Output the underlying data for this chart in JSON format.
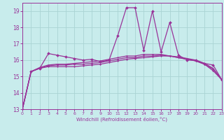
{
  "xlabel": "Windchill (Refroidissement éolien,°C)",
  "bg_color": "#c8ecec",
  "grid_color": "#aad4d4",
  "line_color": "#993399",
  "xlim": [
    0,
    23
  ],
  "ylim": [
    13,
    19.5
  ],
  "yticks": [
    13,
    14,
    15,
    16,
    17,
    18,
    19
  ],
  "xticks": [
    0,
    1,
    2,
    3,
    4,
    5,
    6,
    7,
    8,
    9,
    10,
    11,
    12,
    13,
    14,
    15,
    16,
    17,
    18,
    19,
    20,
    21,
    22,
    23
  ],
  "series": [
    [
      13.0,
      15.3,
      15.5,
      16.4,
      16.3,
      16.2,
      16.1,
      16.0,
      16.05,
      15.9,
      16.0,
      17.5,
      19.2,
      19.2,
      16.6,
      19.0,
      16.5,
      18.3,
      16.3,
      16.0,
      16.0,
      15.8,
      15.7,
      14.8
    ],
    [
      13.0,
      15.3,
      15.5,
      15.6,
      15.6,
      15.6,
      15.6,
      15.65,
      15.7,
      15.75,
      15.85,
      15.95,
      16.05,
      16.1,
      16.15,
      16.2,
      16.25,
      16.25,
      16.2,
      16.1,
      16.0,
      15.8,
      15.5,
      14.8
    ],
    [
      13.0,
      15.3,
      15.5,
      15.65,
      15.7,
      15.7,
      15.75,
      15.75,
      15.8,
      15.85,
      15.95,
      16.05,
      16.15,
      16.15,
      16.25,
      16.25,
      16.3,
      16.25,
      16.15,
      16.05,
      15.95,
      15.75,
      15.35,
      14.8
    ],
    [
      13.0,
      15.3,
      15.55,
      15.7,
      15.75,
      15.75,
      15.8,
      15.85,
      15.9,
      15.95,
      16.05,
      16.15,
      16.25,
      16.25,
      16.35,
      16.35,
      16.35,
      16.25,
      16.15,
      16.05,
      15.95,
      15.75,
      15.45,
      14.8
    ]
  ]
}
